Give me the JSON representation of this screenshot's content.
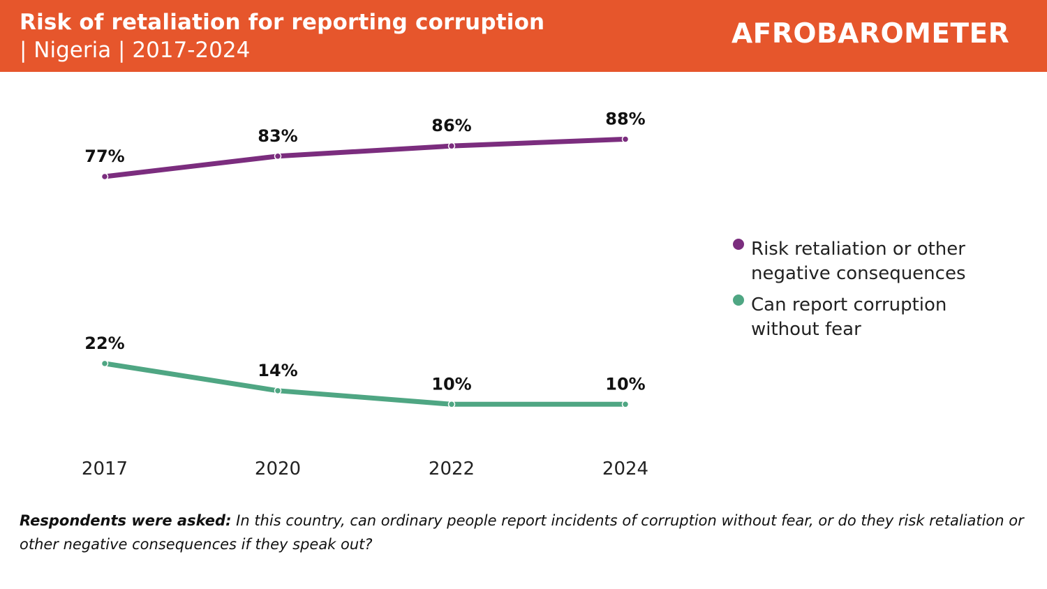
{
  "header": {
    "title": "Risk of retaliation for reporting corruption",
    "subtitle": "| Nigeria | 2017-2024",
    "logo_text": "AFROBAROMETER",
    "background": "#e6562c"
  },
  "chart_data": {
    "type": "line",
    "categories": [
      "2017",
      "2020",
      "2022",
      "2024"
    ],
    "series": [
      {
        "name": "Risk retaliation or other negative consequences",
        "values": [
          77,
          83,
          86,
          88
        ],
        "labels": [
          "77%",
          "83%",
          "86%",
          "88%"
        ],
        "color": "#7b2d7e"
      },
      {
        "name": "Can report corruption without fear",
        "values": [
          22,
          14,
          10,
          10
        ],
        "labels": [
          "22%",
          "14%",
          "10%",
          "10%"
        ],
        "color": "#4fa683"
      }
    ],
    "ylim": [
      0,
      100
    ],
    "grid": false,
    "legend_position": "right"
  },
  "footnote": {
    "lead": "Respondents were asked:",
    "text": " In this country, can ordinary people report incidents of corruption without fear, or do they risk retaliation or other negative consequences if they speak out?"
  }
}
